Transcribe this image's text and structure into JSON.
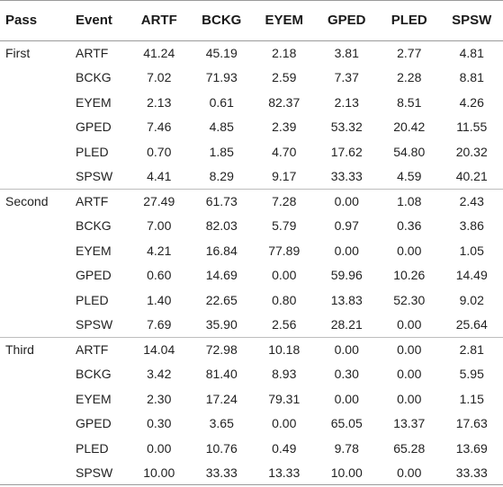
{
  "table": {
    "headers": {
      "pass": "Pass",
      "event": "Event",
      "cols": [
        "ARTF",
        "BCKG",
        "EYEM",
        "GPED",
        "PLED",
        "SPSW"
      ]
    },
    "groups": [
      {
        "pass": "First",
        "rows": [
          {
            "event": "ARTF",
            "values": [
              "41.24",
              "45.19",
              "2.18",
              "3.81",
              "2.77",
              "4.81"
            ]
          },
          {
            "event": "BCKG",
            "values": [
              "7.02",
              "71.93",
              "2.59",
              "7.37",
              "2.28",
              "8.81"
            ]
          },
          {
            "event": "EYEM",
            "values": [
              "2.13",
              "0.61",
              "82.37",
              "2.13",
              "8.51",
              "4.26"
            ]
          },
          {
            "event": "GPED",
            "values": [
              "7.46",
              "4.85",
              "2.39",
              "53.32",
              "20.42",
              "11.55"
            ]
          },
          {
            "event": "PLED",
            "values": [
              "0.70",
              "1.85",
              "4.70",
              "17.62",
              "54.80",
              "20.32"
            ]
          },
          {
            "event": "SPSW",
            "values": [
              "4.41",
              "8.29",
              "9.17",
              "33.33",
              "4.59",
              "40.21"
            ]
          }
        ]
      },
      {
        "pass": "Second",
        "rows": [
          {
            "event": "ARTF",
            "values": [
              "27.49",
              "61.73",
              "7.28",
              "0.00",
              "1.08",
              "2.43"
            ]
          },
          {
            "event": "BCKG",
            "values": [
              "7.00",
              "82.03",
              "5.79",
              "0.97",
              "0.36",
              "3.86"
            ]
          },
          {
            "event": "EYEM",
            "values": [
              "4.21",
              "16.84",
              "77.89",
              "0.00",
              "0.00",
              "1.05"
            ]
          },
          {
            "event": "GPED",
            "values": [
              "0.60",
              "14.69",
              "0.00",
              "59.96",
              "10.26",
              "14.49"
            ]
          },
          {
            "event": "PLED",
            "values": [
              "1.40",
              "22.65",
              "0.80",
              "13.83",
              "52.30",
              "9.02"
            ]
          },
          {
            "event": "SPSW",
            "values": [
              "7.69",
              "35.90",
              "2.56",
              "28.21",
              "0.00",
              "25.64"
            ]
          }
        ]
      },
      {
        "pass": "Third",
        "rows": [
          {
            "event": "ARTF",
            "values": [
              "14.04",
              "72.98",
              "10.18",
              "0.00",
              "0.00",
              "2.81"
            ]
          },
          {
            "event": "BCKG",
            "values": [
              "3.42",
              "81.40",
              "8.93",
              "0.30",
              "0.00",
              "5.95"
            ]
          },
          {
            "event": "EYEM",
            "values": [
              "2.30",
              "17.24",
              "79.31",
              "0.00",
              "0.00",
              "1.15"
            ]
          },
          {
            "event": "GPED",
            "values": [
              "0.30",
              "3.65",
              "0.00",
              "65.05",
              "13.37",
              "17.63"
            ]
          },
          {
            "event": "PLED",
            "values": [
              "0.00",
              "10.76",
              "0.49",
              "9.78",
              "65.28",
              "13.69"
            ]
          },
          {
            "event": "SPSW",
            "values": [
              "10.00",
              "33.33",
              "13.33",
              "10.00",
              "0.00",
              "33.33"
            ]
          }
        ]
      }
    ]
  }
}
